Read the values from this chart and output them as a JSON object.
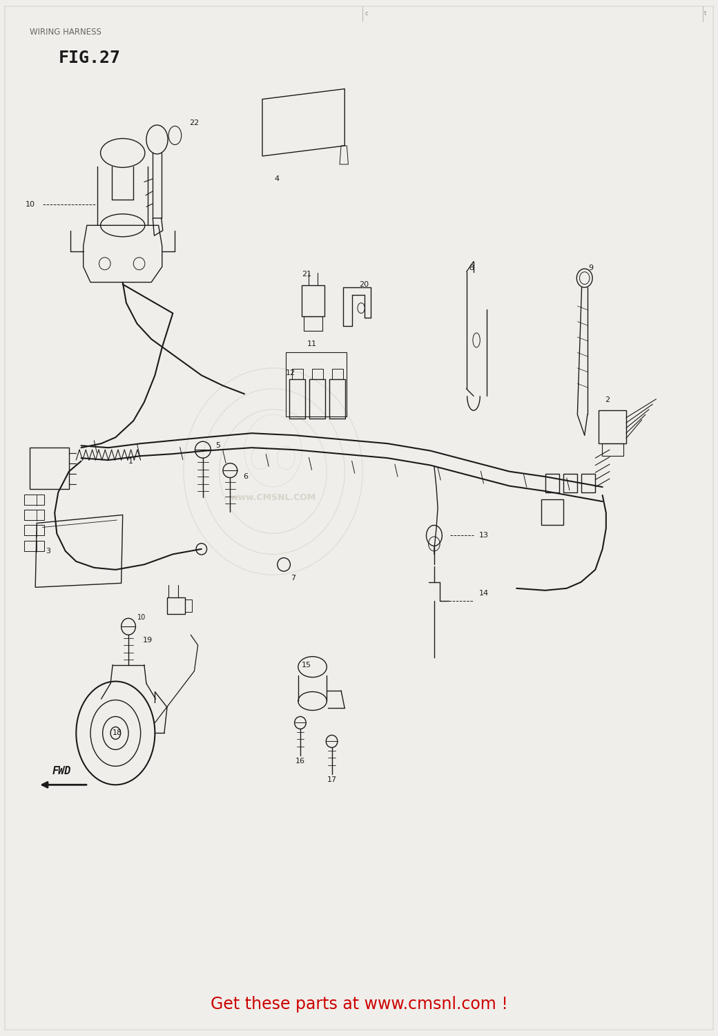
{
  "title": "WIRING HARNESS",
  "fig_label": "FIG.27",
  "footer_text": "Get these parts at www.cmsnl.com !",
  "footer_color": "#cc0000",
  "bg_color": "#f0eeea",
  "title_color": "#555555",
  "fig_color": "#000000",
  "page_width": 10.4,
  "page_height": 15.0,
  "watermark_lines": [
    "www.CMSNL.COM"
  ],
  "note_top_center": "c",
  "note_top_right": "t"
}
